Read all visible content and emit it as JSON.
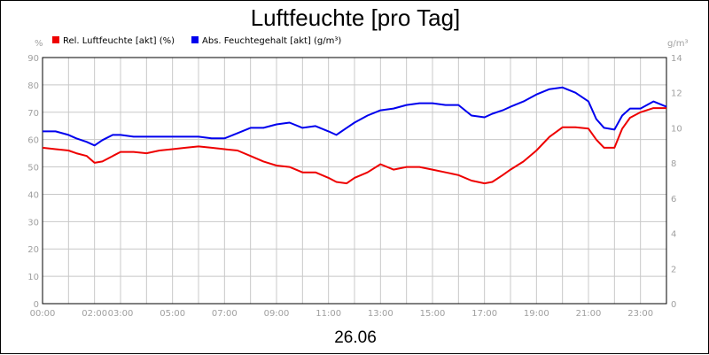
{
  "chart_data": {
    "type": "line",
    "title": "Luftfeuchte [pro Tag]",
    "date_label": "26.06",
    "x_unit": "hours",
    "xlim": [
      0,
      24
    ],
    "x_ticks": [
      "00:00",
      "02:00",
      "03:00",
      "05:00",
      "07:00",
      "09:00",
      "11:00",
      "13:00",
      "15:00",
      "17:00",
      "19:00",
      "21:00",
      "23:00"
    ],
    "x_tick_values": [
      0,
      2,
      3,
      5,
      7,
      9,
      11,
      13,
      15,
      17,
      19,
      21,
      23
    ],
    "y_left": {
      "unit": "%",
      "lim": [
        0,
        90
      ],
      "ticks": [
        "0",
        "10",
        "20",
        "30",
        "40",
        "50",
        "60",
        "70",
        "80",
        "90"
      ]
    },
    "y_right": {
      "unit": "g/m³",
      "lim": [
        0,
        14
      ],
      "ticks": [
        "0",
        "2",
        "4",
        "6",
        "8",
        "10",
        "12",
        "14"
      ]
    },
    "grid": true,
    "legend_position": "top-left",
    "series": [
      {
        "name": "Rel. Luftfeuchte [akt] (%)",
        "color": "#ee0000",
        "axis": "left",
        "x": [
          0,
          0.5,
          1,
          1.3,
          1.7,
          2,
          2.3,
          2.7,
          3,
          3.5,
          4,
          4.5,
          5,
          5.5,
          6,
          6.5,
          7,
          7.5,
          8,
          8.5,
          9,
          9.5,
          10,
          10.5,
          11,
          11.3,
          11.7,
          12,
          12.5,
          13,
          13.5,
          14,
          14.5,
          15,
          15.5,
          16,
          16.5,
          17,
          17.3,
          17.7,
          18,
          18.5,
          19,
          19.5,
          20,
          20.5,
          21,
          21.3,
          21.6,
          22,
          22.3,
          22.6,
          23,
          23.5,
          24
        ],
        "values": [
          57,
          56.5,
          56,
          55,
          54,
          51.5,
          52,
          54,
          55.5,
          55.5,
          55,
          56,
          56.5,
          57,
          57.5,
          57,
          56.5,
          56,
          54,
          52,
          50.5,
          50,
          48,
          48,
          46,
          44.5,
          44,
          46,
          48,
          51,
          49,
          50,
          50,
          49,
          48,
          47,
          45,
          44,
          44.5,
          47,
          49,
          52,
          56,
          61,
          64.5,
          64.5,
          64,
          60,
          57,
          57,
          64,
          68,
          70,
          71.5,
          71.5
        ]
      },
      {
        "name": "Abs. Feuchtegehalt [akt] (g/m³)",
        "color": "#0000ee",
        "axis": "right",
        "x": [
          0,
          0.5,
          1,
          1.3,
          1.7,
          2,
          2.3,
          2.7,
          3,
          3.5,
          4,
          4.5,
          5,
          5.5,
          6,
          6.5,
          7,
          7.5,
          8,
          8.5,
          9,
          9.5,
          10,
          10.5,
          11,
          11.3,
          11.7,
          12,
          12.5,
          13,
          13.5,
          14,
          14.5,
          15,
          15.5,
          16,
          16.5,
          17,
          17.3,
          17.7,
          18,
          18.5,
          19,
          19.5,
          20,
          20.5,
          21,
          21.3,
          21.6,
          22,
          22.3,
          22.6,
          23,
          23.5,
          24
        ],
        "values": [
          9.8,
          9.8,
          9.6,
          9.4,
          9.2,
          9.0,
          9.3,
          9.6,
          9.6,
          9.5,
          9.5,
          9.5,
          9.5,
          9.5,
          9.5,
          9.4,
          9.4,
          9.7,
          10.0,
          10.0,
          10.2,
          10.3,
          10.0,
          10.1,
          9.8,
          9.6,
          10.0,
          10.3,
          10.7,
          11.0,
          11.1,
          11.3,
          11.4,
          11.4,
          11.3,
          11.3,
          10.7,
          10.6,
          10.8,
          11.0,
          11.2,
          11.5,
          11.9,
          12.2,
          12.3,
          12.0,
          11.5,
          10.5,
          10.0,
          9.9,
          10.7,
          11.1,
          11.1,
          11.5,
          11.2
        ]
      }
    ]
  }
}
